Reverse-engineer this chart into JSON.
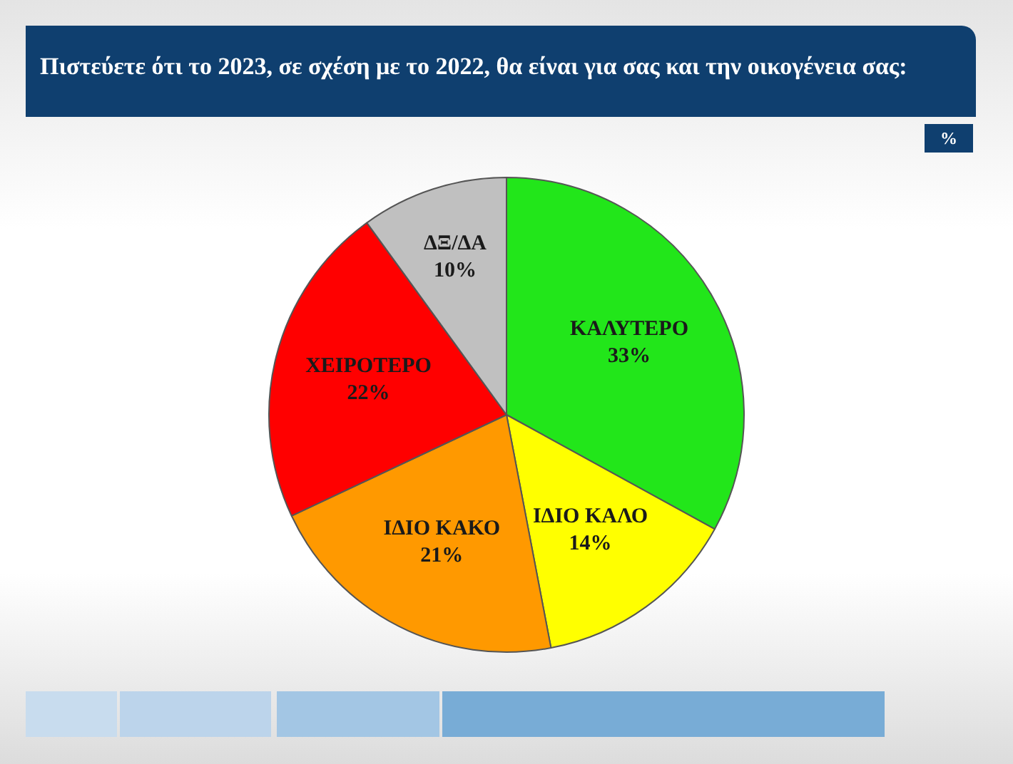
{
  "chart_data": {
    "type": "pie",
    "title": "Πιστεύετε ότι το 2023, σε σχέση με το 2022, θα είναι για σας και την οικογένεια σας:",
    "annotations": [
      "%"
    ],
    "categories": [
      "ΚΑΛΥΤΕΡΟ",
      "ΙΔΙΟ ΚΑΛΟ",
      "ΙΔΙΟ ΚΑΚΟ",
      "ΧΕΙΡΟΤΕΡΟ",
      "ΔΞ/ΔΑ"
    ],
    "values": [
      33,
      14,
      21,
      22,
      10
    ],
    "value_labels": [
      "33%",
      "14%",
      "21%",
      "22%",
      "10%"
    ],
    "colors": [
      "#22e61a",
      "#ffff00",
      "#ff9900",
      "#ff0000",
      "#c0c0c0"
    ]
  }
}
